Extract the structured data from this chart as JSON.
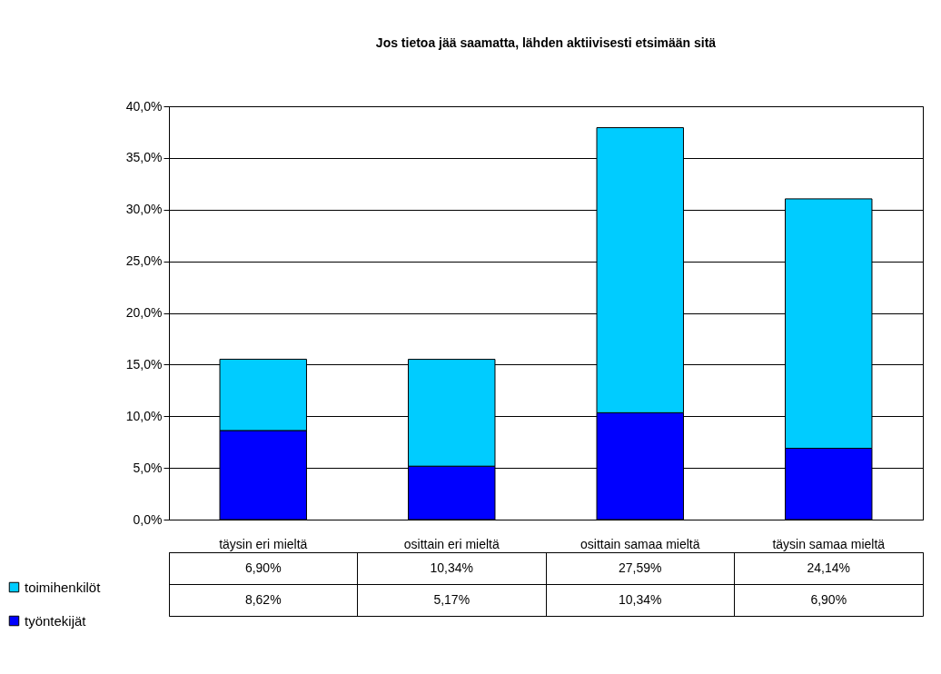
{
  "chart_data": {
    "type": "bar",
    "title": "Jos tietoa jää saamatta, lähden aktiivisesti etsimään sitä",
    "categories": [
      "täysin eri mieltä",
      "osittain eri mieltä",
      "osittain samaa mieltä",
      "täysin samaa mieltä"
    ],
    "stacked": true,
    "series": [
      {
        "name": "työntekijät",
        "color": "#0000ff",
        "values": [
          8.62,
          5.17,
          10.34,
          6.9
        ],
        "value_labels": [
          "8,62%",
          "5,17%",
          "10,34%",
          "6,90%"
        ]
      },
      {
        "name": "toimihenkilöt",
        "color": "#00ccff",
        "values": [
          6.9,
          10.34,
          27.59,
          24.14
        ],
        "value_labels": [
          "6,90%",
          "10,34%",
          "27,59%",
          "24,14%"
        ]
      }
    ],
    "ylim": [
      0,
      40
    ],
    "yticks": [
      {
        "value": 0,
        "label": "0,0%"
      },
      {
        "value": 5,
        "label": "5,0%"
      },
      {
        "value": 10,
        "label": "10,0%"
      },
      {
        "value": 15,
        "label": "15,0%"
      },
      {
        "value": 20,
        "label": "20,0%"
      },
      {
        "value": 25,
        "label": "25,0%"
      },
      {
        "value": 30,
        "label": "30,0%"
      },
      {
        "value": 35,
        "label": "35,0%"
      },
      {
        "value": 40,
        "label": "40,0%"
      }
    ],
    "grid": "y",
    "legend": "bottom left"
  }
}
